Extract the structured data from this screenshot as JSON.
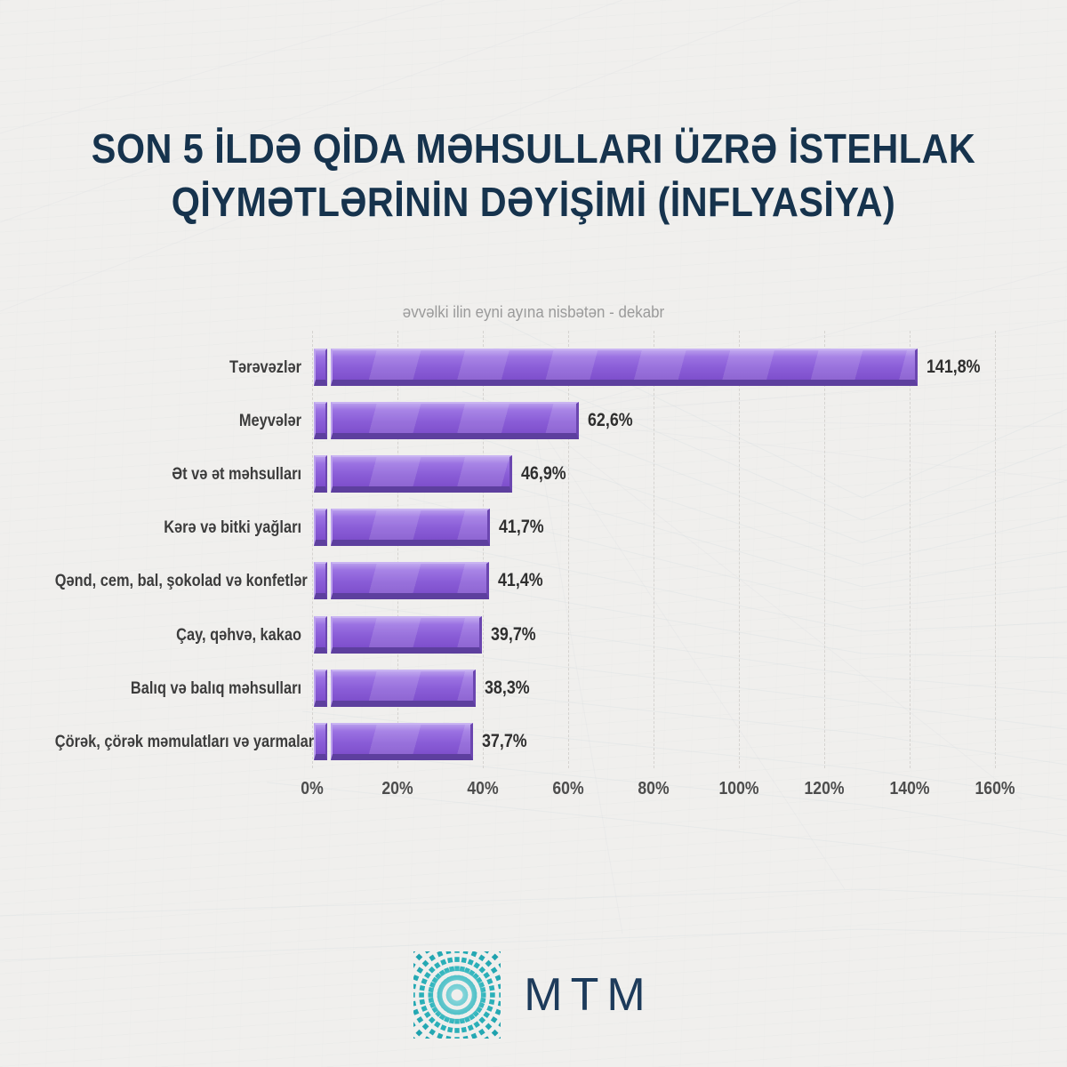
{
  "page": {
    "title_line1": "SON 5 İLDƏ QİDA MƏHSULLARI ÜZRƏ İSTEHLAK",
    "title_line2": "QİYMƏTLƏRİNİN DƏYİŞİMİ (İNFLYASİYA)"
  },
  "chart_data": {
    "type": "bar",
    "orientation": "horizontal",
    "title": "SON 5 İLDƏ QİDA MƏHSULLARI ÜZRƏ İSTEHLAK QİYMƏTLƏRİNİN DƏYİŞİMİ (İNFLYASİYA)",
    "subtitle": "əvvəlki ilin eyni ayına nisbətən - dekabr",
    "categories": [
      "Tərəvəzlər",
      "Meyvələr",
      "Ət və ət məhsulları",
      "Kərə və bitki yağları",
      "Qənd, cem, bal, şokolad və konfetlər",
      "Çay, qəhvə, kakao",
      "Balıq və balıq məhsulları",
      "Çörək, çörək məmulatları və yarmalar"
    ],
    "values": [
      141.8,
      62.6,
      46.9,
      41.7,
      41.4,
      39.7,
      38.3,
      37.7
    ],
    "value_labels": [
      "141,8%",
      "62,6%",
      "46,9%",
      "41,7%",
      "41,4%",
      "39,7%",
      "38,3%",
      "37,7%"
    ],
    "xlim": [
      0,
      160
    ],
    "x_ticks": [
      "0%",
      "20%",
      "40%",
      "60%",
      "80%",
      "100%",
      "120%",
      "140%",
      "160%"
    ],
    "grid": "vertical-dashed",
    "legend": "none",
    "bar_color": "#8a5dd7"
  },
  "footer": {
    "logo_text": "MTM",
    "logo_icon": "radial-burst-icon"
  },
  "colors": {
    "background": "#f0efed",
    "title": "#16334d",
    "subtitle": "#9a9a9a",
    "category_label": "#3c3c3c",
    "value_label": "#2f2f2f",
    "axis_label": "#4d4d4d",
    "gridline": "#d5d3d0",
    "bar_fill": "#8a5dd7",
    "bar_highlight": "#c9b4f2",
    "bar_shadow": "#5d3f9e",
    "logo_teal": "#2fb4bc",
    "logo_navy": "#1d3b5b"
  }
}
